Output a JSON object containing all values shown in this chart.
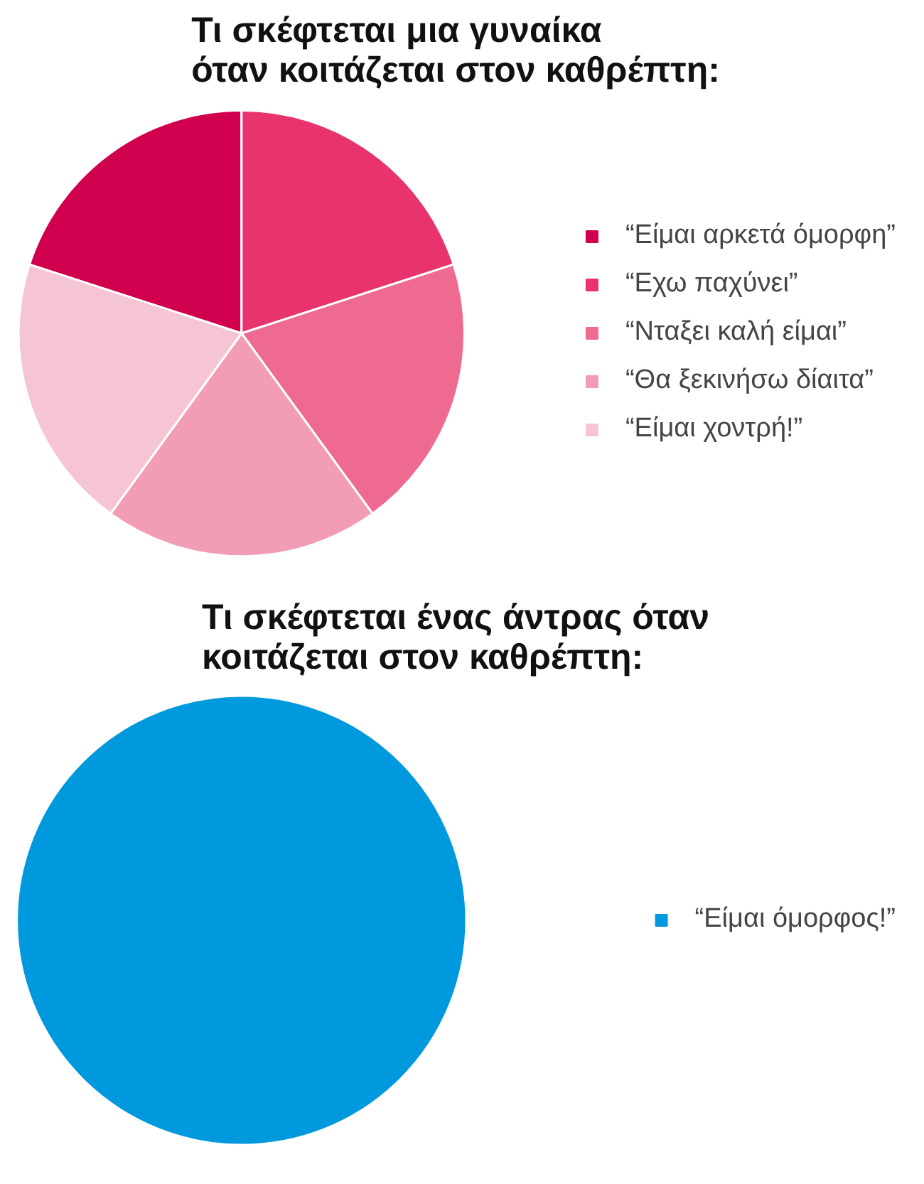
{
  "chart_data": [
    {
      "type": "pie",
      "title": "Τι σκέφτεται μια γυναίκα\nόταν κοιτάζεται στον καθρέπτη:",
      "categories": [
        "“Είμαι αρκετά όμορφη”",
        "“Εχω παχύνει”",
        "“Νταξει καλή είμαι”",
        "“Θα ξεκινήσω δίαιτα”",
        "“Είμαι χοντρή!”"
      ],
      "values": [
        20,
        20,
        20,
        20,
        20
      ],
      "colors": [
        "#d0004f",
        "#e8336c",
        "#ee6a90",
        "#f29db5",
        "#f6c5d3"
      ],
      "legend": "right"
    },
    {
      "type": "pie",
      "title": "Τι σκέφτεται ένας άντρας όταν\nκοιτάζεται στον καθρέπτη:",
      "categories": [
        "“Είμαι όμορφος!”"
      ],
      "values": [
        100
      ],
      "colors": [
        "#0099dd"
      ],
      "legend": "right"
    }
  ]
}
